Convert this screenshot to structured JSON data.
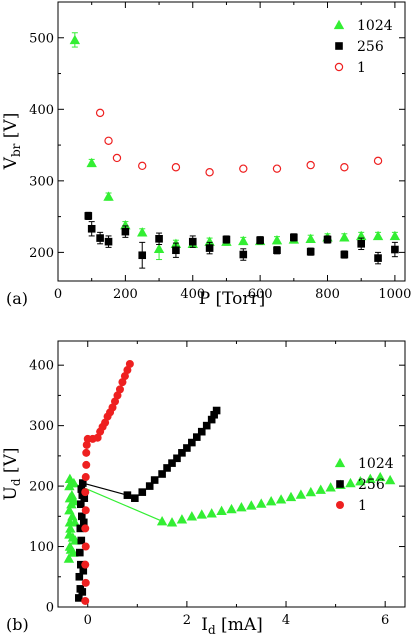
{
  "panels": [
    {
      "tag": "(a)",
      "xlabel": "P [Torr]",
      "ylabel_main": "V",
      "ylabel_sub": "br",
      "ylabel_unit": " [V]"
    },
    {
      "tag": "(b)",
      "xlabel_main": "I",
      "xlabel_sub": "d",
      "xlabel_unit": " [mA]",
      "ylabel_main": "U",
      "ylabel_sub": "d",
      "ylabel_unit": " [V]"
    }
  ],
  "colors": {
    "green": "#33ee33",
    "black": "#000000",
    "red": "#ee2020"
  },
  "chart_data": [
    {
      "type": "scatter",
      "xlabel": "P [Torr]",
      "ylabel": "Vbr [V]",
      "xlim": [
        0,
        1030
      ],
      "ylim": [
        160,
        550
      ],
      "xticks": [
        0,
        200,
        400,
        600,
        800,
        1000
      ],
      "yticks": [
        200,
        300,
        400,
        500
      ],
      "legend_position": "top-right",
      "series": [
        {
          "name": "1024",
          "marker": "triangle",
          "x": [
            50,
            100,
            150,
            200,
            250,
            300,
            350,
            400,
            450,
            500,
            550,
            600,
            650,
            700,
            750,
            800,
            850,
            900,
            950,
            1000
          ],
          "y": [
            497,
            325,
            278,
            238,
            228,
            205,
            212,
            212,
            215,
            215,
            216,
            216,
            217,
            218,
            219,
            221,
            221,
            223,
            223,
            223
          ],
          "err": [
            10,
            5,
            5,
            5,
            5,
            15,
            5,
            5,
            5,
            5,
            5,
            5,
            5,
            5,
            5,
            5,
            5,
            5,
            5,
            5
          ]
        },
        {
          "name": "256",
          "marker": "square",
          "x": [
            90,
            100,
            125,
            150,
            200,
            250,
            300,
            350,
            400,
            450,
            500,
            550,
            600,
            650,
            700,
            750,
            800,
            850,
            900,
            950,
            1000
          ],
          "y": [
            251,
            233,
            220,
            215,
            229,
            196,
            219,
            203,
            215,
            206,
            218,
            197,
            217,
            203,
            221,
            201,
            218,
            197,
            212,
            192,
            204
          ],
          "err": [
            5,
            10,
            8,
            8,
            8,
            18,
            8,
            10,
            8,
            8,
            5,
            8,
            5,
            5,
            5,
            5,
            5,
            5,
            8,
            8,
            10
          ]
        },
        {
          "name": "1",
          "marker": "open-circle",
          "x": [
            125,
            150,
            175,
            250,
            350,
            450,
            550,
            650,
            750,
            850,
            950
          ],
          "y": [
            395,
            356,
            332,
            321,
            319,
            312,
            317,
            317,
            322,
            319,
            328
          ],
          "err": [
            0,
            0,
            0,
            0,
            0,
            0,
            0,
            0,
            0,
            0,
            0
          ]
        }
      ]
    },
    {
      "type": "scatter",
      "xlabel": "Id [mA]",
      "ylabel": "Ud [V]",
      "xlim": [
        -0.6,
        6.4
      ],
      "ylim": [
        0,
        440
      ],
      "xticks": [
        0,
        2,
        4,
        6
      ],
      "yticks": [
        0,
        100,
        200,
        300,
        400
      ],
      "legend_position": "top-right",
      "series": [
        {
          "name": "1024",
          "marker": "triangle",
          "points": [
            [
              -0.38,
              80
            ],
            [
              -0.36,
              100
            ],
            [
              -0.37,
              120
            ],
            [
              -0.36,
              140
            ],
            [
              -0.37,
              160
            ],
            [
              -0.36,
              180
            ],
            [
              -0.37,
              200
            ],
            [
              -0.36,
              212
            ],
            [
              -0.34,
              95
            ],
            [
              -0.35,
              130
            ],
            [
              -0.33,
              170
            ],
            [
              -0.33,
              205
            ],
            [
              -0.32,
              185
            ],
            [
              -0.31,
              150
            ],
            [
              -0.3,
              115
            ],
            [
              -0.29,
              90
            ],
            [
              -0.28,
              205
            ],
            [
              -0.27,
              175
            ],
            [
              -0.26,
              140
            ],
            [
              -0.25,
              110
            ],
            [
              1.5,
              142
            ],
            [
              1.7,
              140
            ],
            [
              1.9,
              145
            ],
            [
              2.1,
              150
            ],
            [
              2.3,
              153
            ],
            [
              2.5,
              155
            ],
            [
              2.7,
              159
            ],
            [
              2.9,
              162
            ],
            [
              3.1,
              165
            ],
            [
              3.3,
              168
            ],
            [
              3.5,
              171
            ],
            [
              3.7,
              175
            ],
            [
              3.9,
              178
            ],
            [
              4.1,
              182
            ],
            [
              4.3,
              186
            ],
            [
              4.5,
              190
            ],
            [
              4.7,
              194
            ],
            [
              4.9,
              198
            ],
            [
              5.1,
              202
            ],
            [
              5.3,
              205
            ],
            [
              5.5,
              208
            ],
            [
              5.7,
              212
            ],
            [
              5.9,
              215
            ],
            [
              6.1,
              210
            ]
          ],
          "line": [
            [
              -0.3,
              205
            ],
            [
              1.5,
              142
            ]
          ]
        },
        {
          "name": "256",
          "marker": "square",
          "points": [
            [
              -0.18,
              15
            ],
            [
              -0.15,
              30
            ],
            [
              -0.17,
              50
            ],
            [
              -0.14,
              70
            ],
            [
              -0.16,
              90
            ],
            [
              -0.13,
              110
            ],
            [
              -0.15,
              130
            ],
            [
              -0.12,
              150
            ],
            [
              -0.14,
              170
            ],
            [
              -0.11,
              185
            ],
            [
              -0.13,
              195
            ],
            [
              -0.1,
              205
            ],
            [
              -0.09,
              60
            ],
            [
              -0.11,
              25
            ],
            [
              -0.08,
              140
            ],
            [
              -0.07,
              180
            ],
            [
              0.8,
              185
            ],
            [
              0.95,
              180
            ],
            [
              1.1,
              190
            ],
            [
              1.25,
              200
            ],
            [
              1.35,
              210
            ],
            [
              1.5,
              220
            ],
            [
              1.6,
              230
            ],
            [
              1.7,
              238
            ],
            [
              1.8,
              246
            ],
            [
              1.9,
              255
            ],
            [
              2.0,
              263
            ],
            [
              2.1,
              272
            ],
            [
              2.2,
              281
            ],
            [
              2.3,
              290
            ],
            [
              2.4,
              300
            ],
            [
              2.5,
              310
            ],
            [
              2.55,
              318
            ],
            [
              2.6,
              325
            ]
          ],
          "line": [
            [
              -0.1,
              205
            ],
            [
              0.8,
              185
            ]
          ]
        },
        {
          "name": "1",
          "marker": "filled-circle",
          "points": [
            [
              -0.05,
              10
            ],
            [
              -0.04,
              40
            ],
            [
              -0.05,
              70
            ],
            [
              -0.04,
              100
            ],
            [
              -0.05,
              130
            ],
            [
              -0.04,
              160
            ],
            [
              -0.05,
              190
            ],
            [
              -0.04,
              215
            ],
            [
              -0.03,
              235
            ],
            [
              -0.03,
              255
            ],
            [
              -0.02,
              268
            ],
            [
              0.0,
              278
            ],
            [
              0.1,
              278
            ],
            [
              0.2,
              280
            ],
            [
              0.25,
              290
            ],
            [
              0.3,
              298
            ],
            [
              0.35,
              305
            ],
            [
              0.4,
              315
            ],
            [
              0.45,
              322
            ],
            [
              0.5,
              330
            ],
            [
              0.55,
              340
            ],
            [
              0.6,
              350
            ],
            [
              0.65,
              360
            ],
            [
              0.7,
              372
            ],
            [
              0.75,
              382
            ],
            [
              0.8,
              392
            ],
            [
              0.85,
              402
            ]
          ],
          "line": []
        }
      ]
    }
  ]
}
